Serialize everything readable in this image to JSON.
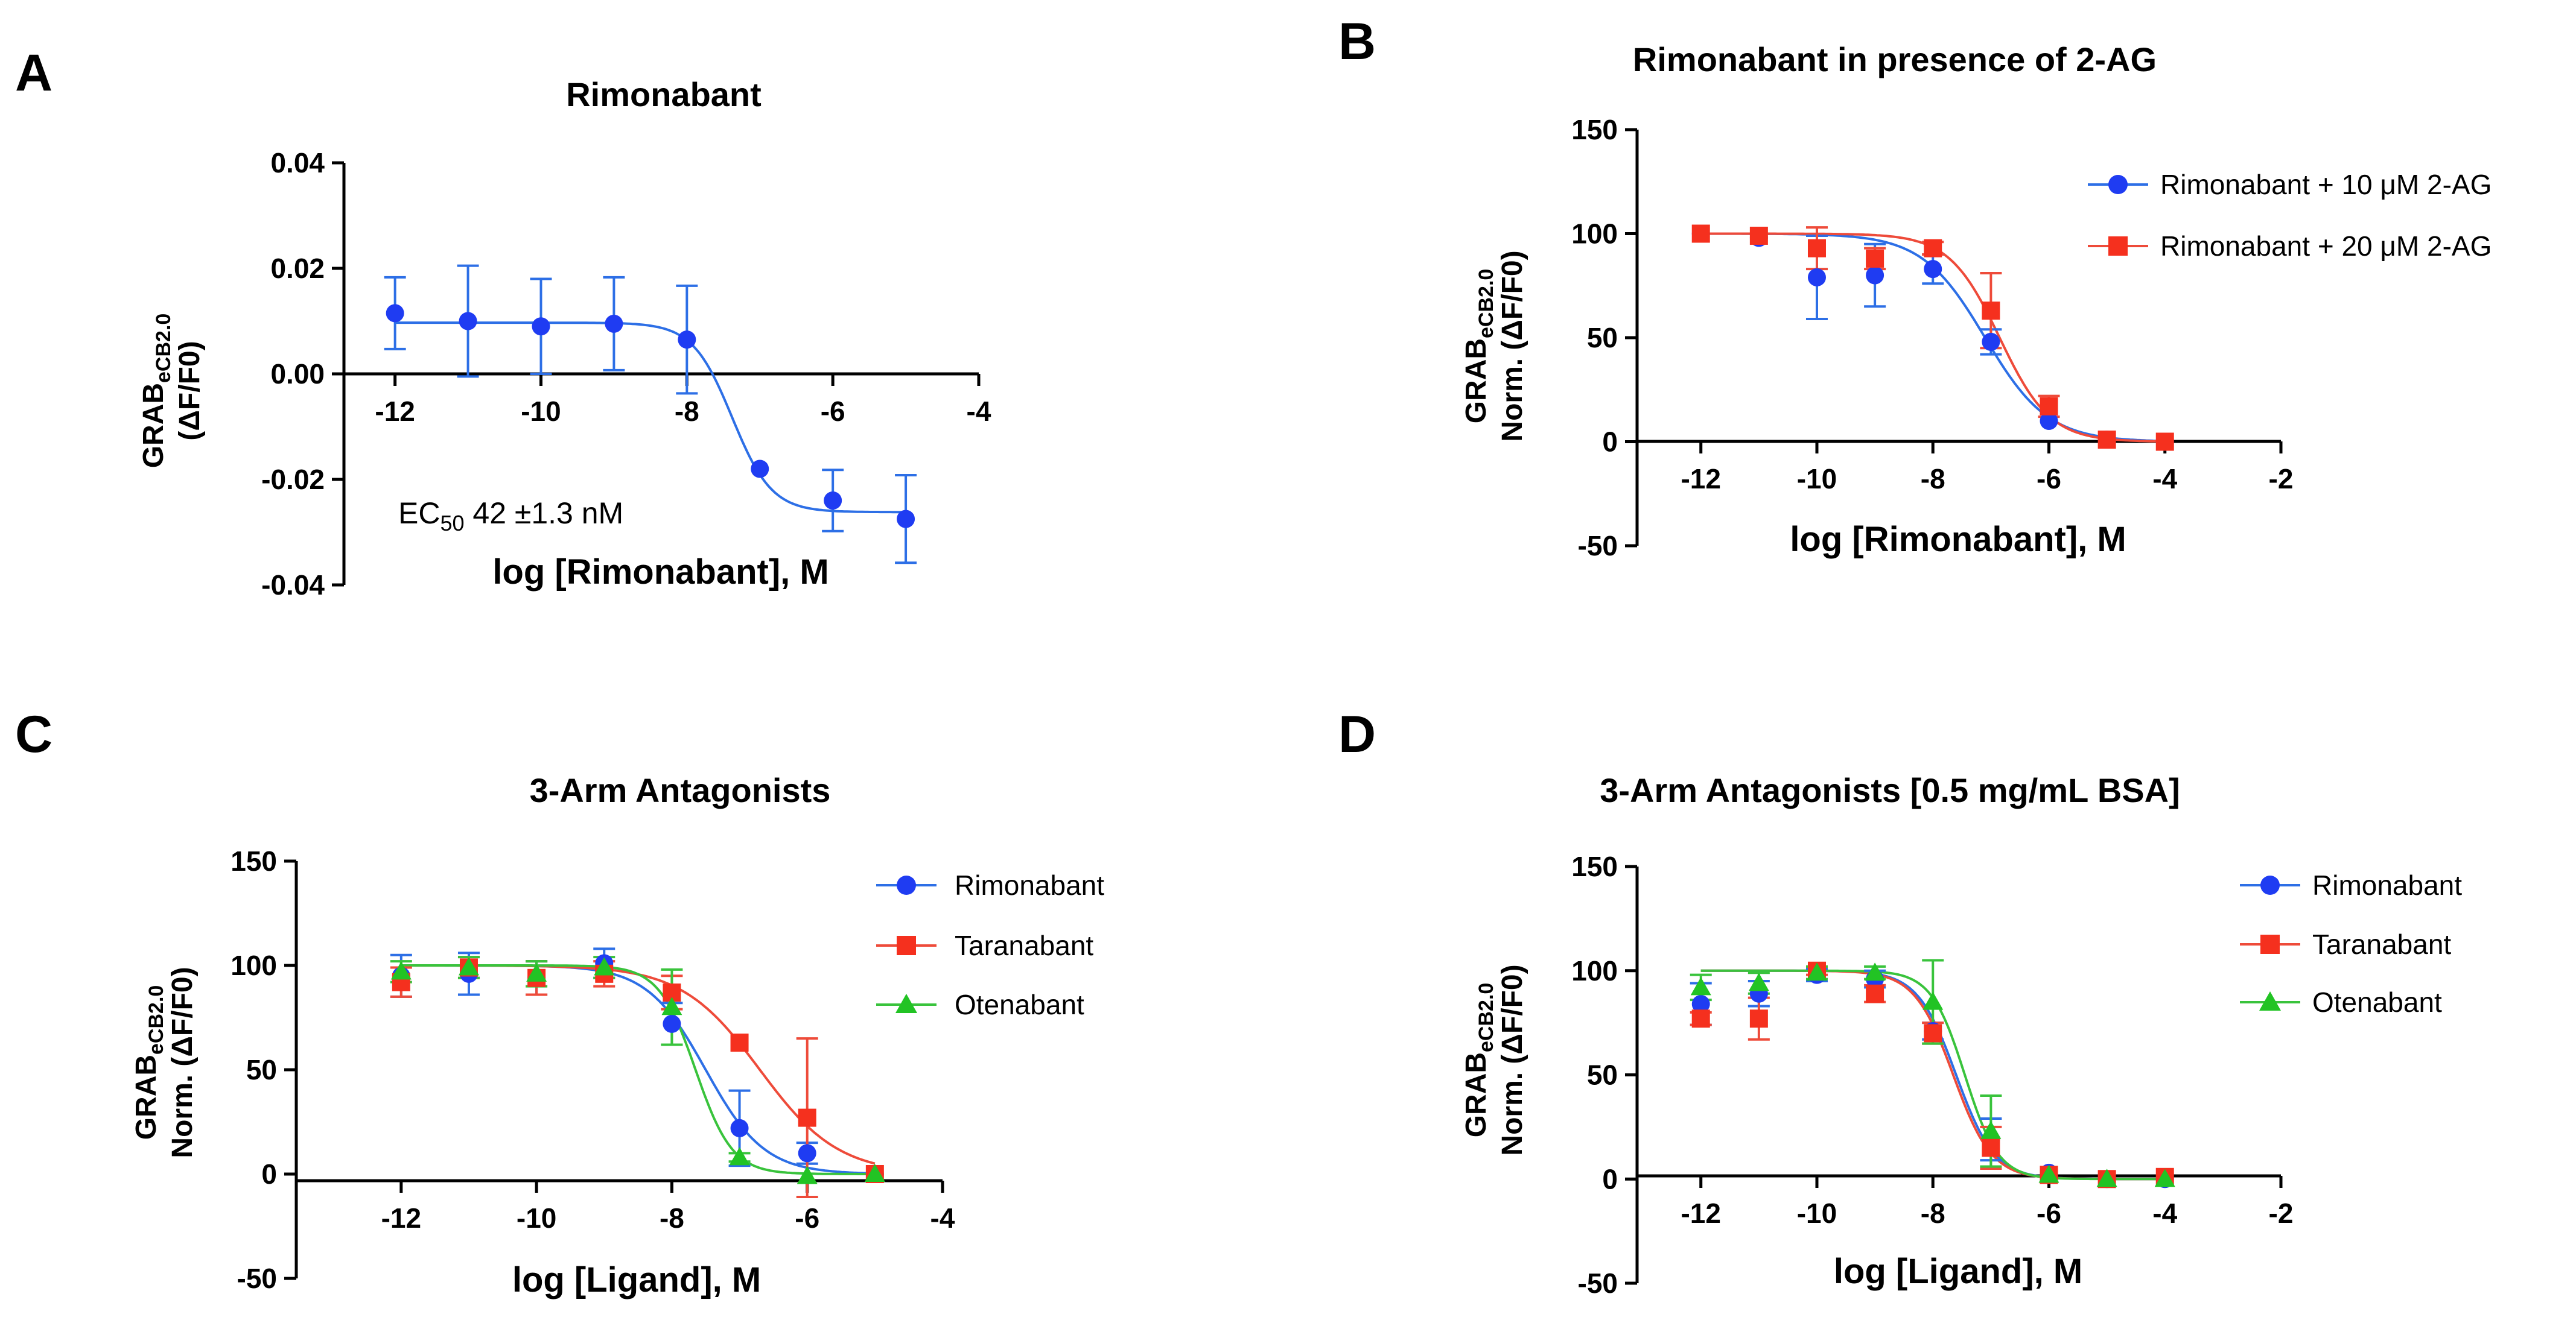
{
  "figure": {
    "panel_letters": [
      "A",
      "B",
      "C",
      "D"
    ],
    "colors": {
      "blue": "#1f3cf2",
      "blue_line": "#2d6fe6",
      "red": "#f5301e",
      "red_line": "#ee4b3a",
      "green": "#22c324",
      "green_line": "#39c33c"
    }
  },
  "chart_data": [
    {
      "panel": "A",
      "type": "scatter",
      "title": "Rimonabant",
      "ylabel_main": "GRAB",
      "ylabel_sub": "eCB2.0",
      "ylabel_line2": "(ΔF/F0)",
      "xlabel": "log [Rimonabant], M",
      "xticks": [
        "-12",
        "-10",
        "-8",
        "-6",
        "-4"
      ],
      "yticks": [
        "0.04",
        "0.02",
        "0.00",
        "-0.02",
        "-0.04"
      ],
      "xlim": [
        -12.7,
        -4
      ],
      "ylim": [
        -0.04,
        0.04
      ],
      "annotation": {
        "prefix": "EC",
        "sub": "50",
        "text": " 42 ±1.3 nM"
      },
      "series": [
        {
          "name": "Rimonabant",
          "color": "blue",
          "marker": "circle",
          "x": [
            -12,
            -11,
            -10,
            -9,
            -8,
            -7,
            -6,
            -5
          ],
          "y": [
            0.0115,
            0.01,
            0.009,
            0.0095,
            0.0065,
            -0.018,
            -0.024,
            -0.0275
          ],
          "err": [
            0.0068,
            0.0105,
            0.009,
            0.0088,
            0.0102,
            0.0,
            0.0058,
            0.0083
          ],
          "fit": {
            "top": 0.0097,
            "bottom": -0.0262,
            "logEC50": -7.38,
            "hill": 1.6
          }
        }
      ]
    },
    {
      "panel": "B",
      "type": "scatter",
      "title": "Rimonabant in presence of 2-AG",
      "ylabel_main": "GRAB",
      "ylabel_sub": "eCB2.0",
      "ylabel_line2": "Norm. (ΔF/F0)",
      "xlabel": "log [Rimonabant], M",
      "xticks": [
        "-12",
        "-10",
        "-8",
        "-6",
        "-4",
        "-2"
      ],
      "yticks": [
        "150",
        "100",
        "50",
        "0",
        "-50"
      ],
      "xlim": [
        -13.1,
        -2
      ],
      "ylim": [
        -50,
        150
      ],
      "series": [
        {
          "name": "Rimonabant + 10 μM 2-AG",
          "color": "blue",
          "marker": "circle",
          "x": [
            -12,
            -11,
            -10,
            -9,
            -8,
            -7,
            -6,
            -5,
            -4
          ],
          "y": [
            100,
            98,
            79,
            80,
            83,
            48,
            10,
            1,
            0
          ],
          "err": [
            0,
            0,
            20,
            15,
            7,
            6,
            0,
            0,
            0
          ],
          "fit": {
            "top": 100,
            "bottom": 0,
            "logEC50": -7.1,
            "hill": 0.8
          }
        },
        {
          "name": "Rimonabant + 20 μM 2-AG",
          "color": "red",
          "marker": "square",
          "x": [
            -12,
            -11,
            -10,
            -9,
            -8,
            -7,
            -6,
            -5,
            -4
          ],
          "y": [
            100,
            99,
            93,
            88,
            93,
            63,
            17,
            1,
            0
          ],
          "err": [
            0,
            0,
            10,
            5,
            3,
            18,
            5,
            0,
            0
          ],
          "fit": {
            "top": 100,
            "bottom": 0,
            "logEC50": -6.85,
            "hill": 1.0
          }
        }
      ],
      "legend": {
        "position": "top-right"
      }
    },
    {
      "panel": "C",
      "type": "scatter",
      "title": "3-Arm Antagonists",
      "ylabel_main": "GRAB",
      "ylabel_sub": "eCB2.0",
      "ylabel_line2": "Norm. (ΔF/F0)",
      "xlabel": "log [Ligand], M",
      "xticks": [
        "-12",
        "-10",
        "-8",
        "-6",
        "-4"
      ],
      "yticks": [
        "150",
        "100",
        "50",
        "0",
        "-50"
      ],
      "xlim": [
        -13.55,
        -4
      ],
      "ylim": [
        -50,
        150
      ],
      "series": [
        {
          "name": "Rimonabant",
          "color": "blue",
          "marker": "circle",
          "x": [
            -12,
            -11,
            -10,
            -9,
            -8,
            -7,
            -6,
            -5
          ],
          "y": [
            95,
            96,
            94,
            101,
            72,
            22,
            10,
            0
          ],
          "err": [
            10,
            10,
            8,
            7,
            10,
            18,
            5,
            0
          ],
          "fit": {
            "top": 100,
            "bottom": 0,
            "logEC50": -7.5,
            "hill": 1.0
          }
        },
        {
          "name": "Taranabant",
          "color": "red",
          "marker": "square",
          "x": [
            -12,
            -11,
            -10,
            -9,
            -8,
            -7,
            -6,
            -5
          ],
          "y": [
            92,
            99,
            94,
            96,
            87,
            63,
            27,
            0
          ],
          "err": [
            7,
            5,
            8,
            6,
            8,
            0,
            38,
            0
          ],
          "fit": {
            "top": 100,
            "bottom": 0,
            "logEC50": -6.7,
            "hill": 0.75
          }
        },
        {
          "name": "Otenabant",
          "color": "green",
          "marker": "triangle",
          "x": [
            -12,
            -11,
            -10,
            -9,
            -8,
            -7,
            -6,
            -5
          ],
          "y": [
            97,
            99,
            96,
            99,
            80,
            8,
            -1,
            0
          ],
          "err": [
            5,
            5,
            6,
            5,
            18,
            2,
            0,
            0
          ],
          "fit": {
            "top": 100,
            "bottom": 0,
            "logEC50": -7.65,
            "hill": 1.6
          }
        }
      ],
      "legend": {
        "position": "top-right"
      }
    },
    {
      "panel": "D",
      "type": "scatter",
      "title": "3-Arm Antagonists [0.5 mg/mL BSA]",
      "ylabel_main": "GRAB",
      "ylabel_sub": "eCB2.0",
      "ylabel_line2": "Norm. (ΔF/F0)",
      "xlabel": "log [Ligand], M",
      "xticks": [
        "-12",
        "-10",
        "-8",
        "-6",
        "-4",
        "-2"
      ],
      "yticks": [
        "150",
        "100",
        "50",
        "0",
        "-50"
      ],
      "xlim": [
        -13.1,
        -2
      ],
      "ylim": [
        -50,
        150
      ],
      "series": [
        {
          "name": "Rimonabant",
          "color": "blue",
          "marker": "circle",
          "x": [
            -12,
            -11,
            -10,
            -9,
            -8,
            -7,
            -6,
            -5,
            -4
          ],
          "y": [
            84,
            89,
            98,
            96,
            71,
            19,
            3,
            0,
            0
          ],
          "err": [
            10,
            6,
            3,
            4,
            4,
            10,
            0,
            0,
            0
          ],
          "fit": {
            "top": 100,
            "bottom": 0,
            "logEC50": -7.6,
            "hill": 1.3
          }
        },
        {
          "name": "Taranabant",
          "color": "red",
          "marker": "square",
          "x": [
            -12,
            -11,
            -10,
            -9,
            -8,
            -7,
            -6,
            -5,
            -4
          ],
          "y": [
            77,
            77,
            100,
            89,
            70,
            15,
            2,
            0,
            1
          ],
          "err": [
            3,
            10,
            2,
            4,
            5,
            10,
            0,
            0,
            0
          ],
          "fit": {
            "top": 100,
            "bottom": 0,
            "logEC50": -7.65,
            "hill": 1.3
          }
        },
        {
          "name": "Otenabant",
          "color": "green",
          "marker": "triangle",
          "x": [
            -12,
            -11,
            -10,
            -9,
            -8,
            -7,
            -6,
            -5,
            -4
          ],
          "y": [
            92,
            94,
            99,
            99,
            85,
            23,
            2,
            0,
            0
          ],
          "err": [
            6,
            5,
            3,
            3,
            20,
            17,
            0,
            0,
            0
          ],
          "fit": {
            "top": 100,
            "bottom": 0,
            "logEC50": -7.45,
            "hill": 1.5
          }
        }
      ],
      "legend": {
        "position": "top-right"
      }
    }
  ]
}
